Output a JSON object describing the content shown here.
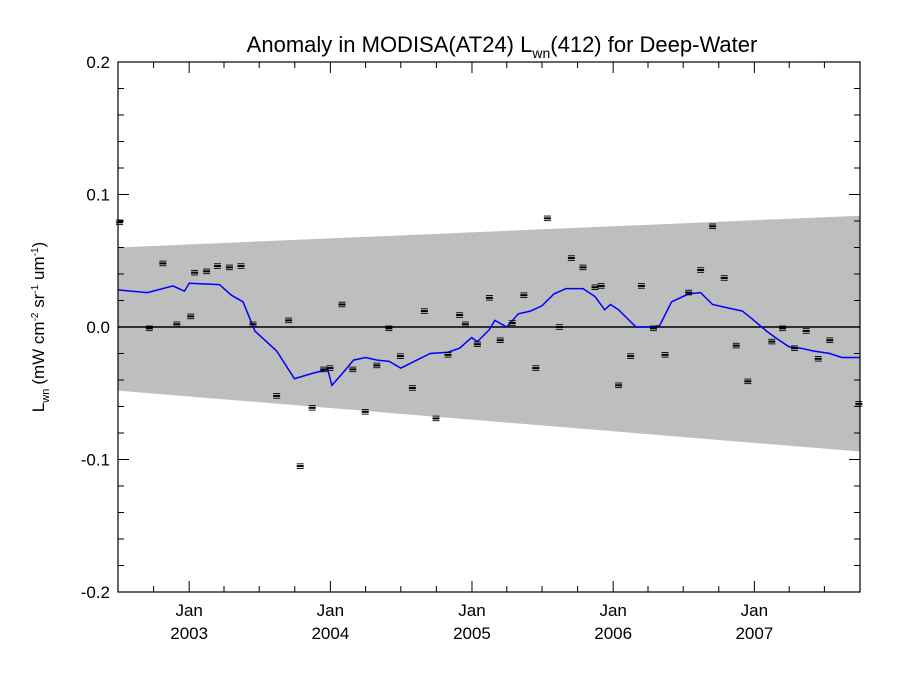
{
  "chart_data": {
    "type": "scatter",
    "title_main": "Anomaly in MODISA(AT24) L",
    "title_sub": "wn",
    "title_rest": "(412) for Deep-Water",
    "ylabel": {
      "base": "L",
      "base_sub": "wn",
      "units_pre": "(mW cm",
      "units_sup1": "-2",
      "units_mid1": " sr",
      "units_sup2": "-1",
      "units_mid2": " um",
      "units_sup3": "-1",
      "units_post": ")"
    },
    "x_range": [
      "2002-07-01",
      "2007-10-01"
    ],
    "ylim": [
      -0.2,
      0.2
    ],
    "y_ticks": [
      {
        "value": 0.2,
        "label": "0.2"
      },
      {
        "value": 0.1,
        "label": "0.1"
      },
      {
        "value": 0.0,
        "label": "0.0"
      },
      {
        "value": -0.1,
        "label": "-0.1"
      },
      {
        "value": -0.2,
        "label": "-0.2"
      }
    ],
    "x_ticks": [
      {
        "date": "2003-01-01",
        "month": "Jan",
        "year": "2003"
      },
      {
        "date": "2004-01-01",
        "month": "Jan",
        "year": "2004"
      },
      {
        "date": "2005-01-01",
        "month": "Jan",
        "year": "2005"
      },
      {
        "date": "2006-01-01",
        "month": "Jan",
        "year": "2006"
      },
      {
        "date": "2007-01-01",
        "month": "Jan",
        "year": "2007"
      }
    ],
    "band": {
      "start": {
        "date": "2002-07-01",
        "upper": 0.06,
        "lower": -0.048
      },
      "end": {
        "date": "2007-10-01",
        "upper": 0.084,
        "lower": -0.094
      }
    },
    "zero_line": 0.0,
    "series": [
      {
        "kind": "points",
        "color": "#000000",
        "points": [
          {
            "x": "2002-07-05",
            "y": 0.079
          },
          {
            "x": "2002-09-20",
            "y": -0.001
          },
          {
            "x": "2002-10-25",
            "y": 0.048
          },
          {
            "x": "2002-11-30",
            "y": 0.002
          },
          {
            "x": "2003-01-05",
            "y": 0.008
          },
          {
            "x": "2003-01-15",
            "y": 0.041
          },
          {
            "x": "2003-02-15",
            "y": 0.042
          },
          {
            "x": "2003-03-15",
            "y": 0.046
          },
          {
            "x": "2003-04-15",
            "y": 0.045
          },
          {
            "x": "2003-05-15",
            "y": 0.046
          },
          {
            "x": "2003-06-15",
            "y": 0.002
          },
          {
            "x": "2003-08-15",
            "y": -0.052
          },
          {
            "x": "2003-09-15",
            "y": 0.005
          },
          {
            "x": "2003-10-15",
            "y": -0.105
          },
          {
            "x": "2003-11-15",
            "y": -0.061
          },
          {
            "x": "2003-12-15",
            "y": -0.032
          },
          {
            "x": "2003-12-31",
            "y": -0.031
          },
          {
            "x": "2004-01-31",
            "y": 0.017
          },
          {
            "x": "2004-02-28",
            "y": -0.032
          },
          {
            "x": "2004-03-31",
            "y": -0.064
          },
          {
            "x": "2004-04-30",
            "y": -0.029
          },
          {
            "x": "2004-05-31",
            "y": -0.001
          },
          {
            "x": "2004-06-30",
            "y": -0.022
          },
          {
            "x": "2004-07-31",
            "y": -0.046
          },
          {
            "x": "2004-08-31",
            "y": 0.012
          },
          {
            "x": "2004-09-30",
            "y": -0.069
          },
          {
            "x": "2004-10-31",
            "y": -0.021
          },
          {
            "x": "2004-11-30",
            "y": 0.009
          },
          {
            "x": "2004-12-15",
            "y": 0.002
          },
          {
            "x": "2005-01-15",
            "y": -0.013
          },
          {
            "x": "2005-02-15",
            "y": 0.022
          },
          {
            "x": "2005-03-15",
            "y": -0.01
          },
          {
            "x": "2005-04-15",
            "y": 0.003
          },
          {
            "x": "2005-05-15",
            "y": 0.024
          },
          {
            "x": "2005-06-15",
            "y": -0.031
          },
          {
            "x": "2005-07-15",
            "y": 0.082
          },
          {
            "x": "2005-08-15",
            "y": 0.0
          },
          {
            "x": "2005-09-15",
            "y": 0.052
          },
          {
            "x": "2005-10-15",
            "y": 0.045
          },
          {
            "x": "2005-11-15",
            "y": 0.03
          },
          {
            "x": "2005-12-01",
            "y": 0.031
          },
          {
            "x": "2006-01-15",
            "y": -0.044
          },
          {
            "x": "2006-02-15",
            "y": -0.022
          },
          {
            "x": "2006-03-15",
            "y": 0.031
          },
          {
            "x": "2006-04-15",
            "y": -0.001
          },
          {
            "x": "2006-05-15",
            "y": -0.021
          },
          {
            "x": "2006-07-15",
            "y": 0.026
          },
          {
            "x": "2006-08-15",
            "y": 0.043
          },
          {
            "x": "2006-09-15",
            "y": 0.076
          },
          {
            "x": "2006-10-15",
            "y": 0.037
          },
          {
            "x": "2006-11-15",
            "y": -0.014
          },
          {
            "x": "2006-12-15",
            "y": -0.041
          },
          {
            "x": "2007-02-15",
            "y": -0.011
          },
          {
            "x": "2007-03-15",
            "y": -0.001
          },
          {
            "x": "2007-04-15",
            "y": -0.016
          },
          {
            "x": "2007-05-15",
            "y": -0.003
          },
          {
            "x": "2007-06-15",
            "y": -0.024
          },
          {
            "x": "2007-07-15",
            "y": -0.01
          },
          {
            "x": "2007-09-28",
            "y": -0.058
          }
        ]
      },
      {
        "kind": "line",
        "color": "#0000ff",
        "points": [
          {
            "x": "2002-07-01",
            "y": 0.028
          },
          {
            "x": "2002-09-15",
            "y": 0.026
          },
          {
            "x": "2002-11-20",
            "y": 0.031
          },
          {
            "x": "2002-12-20",
            "y": 0.027
          },
          {
            "x": "2003-01-01",
            "y": 0.033
          },
          {
            "x": "2003-03-20",
            "y": 0.032
          },
          {
            "x": "2003-04-20",
            "y": 0.024
          },
          {
            "x": "2003-05-20",
            "y": 0.019
          },
          {
            "x": "2003-06-20",
            "y": -0.003
          },
          {
            "x": "2003-08-15",
            "y": -0.018
          },
          {
            "x": "2003-09-30",
            "y": -0.039
          },
          {
            "x": "2003-11-15",
            "y": -0.035
          },
          {
            "x": "2003-12-25",
            "y": -0.032
          },
          {
            "x": "2004-01-05",
            "y": -0.044
          },
          {
            "x": "2004-02-01",
            "y": -0.035
          },
          {
            "x": "2004-03-01",
            "y": -0.025
          },
          {
            "x": "2004-04-01",
            "y": -0.023
          },
          {
            "x": "2004-05-01",
            "y": -0.025
          },
          {
            "x": "2004-06-01",
            "y": -0.026
          },
          {
            "x": "2004-07-01",
            "y": -0.031
          },
          {
            "x": "2004-09-15",
            "y": -0.02
          },
          {
            "x": "2004-10-31",
            "y": -0.019
          },
          {
            "x": "2004-11-30",
            "y": -0.016
          },
          {
            "x": "2004-12-31",
            "y": -0.008
          },
          {
            "x": "2005-01-15",
            "y": -0.011
          },
          {
            "x": "2005-02-15",
            "y": -0.002
          },
          {
            "x": "2005-03-01",
            "y": 0.005
          },
          {
            "x": "2005-04-01",
            "y": 0.0
          },
          {
            "x": "2005-05-01",
            "y": 0.01
          },
          {
            "x": "2005-06-01",
            "y": 0.012
          },
          {
            "x": "2005-07-01",
            "y": 0.016
          },
          {
            "x": "2005-08-01",
            "y": 0.025
          },
          {
            "x": "2005-09-01",
            "y": 0.029
          },
          {
            "x": "2005-10-15",
            "y": 0.029
          },
          {
            "x": "2005-11-15",
            "y": 0.023
          },
          {
            "x": "2005-12-10",
            "y": 0.013
          },
          {
            "x": "2005-12-25",
            "y": 0.017
          },
          {
            "x": "2006-01-15",
            "y": 0.013
          },
          {
            "x": "2006-03-01",
            "y": 0.0
          },
          {
            "x": "2006-04-01",
            "y": 0.0
          },
          {
            "x": "2006-05-01",
            "y": 0.001
          },
          {
            "x": "2006-06-01",
            "y": 0.019
          },
          {
            "x": "2006-07-15",
            "y": 0.025
          },
          {
            "x": "2006-08-15",
            "y": 0.026
          },
          {
            "x": "2006-09-15",
            "y": 0.017
          },
          {
            "x": "2006-10-15",
            "y": 0.015
          },
          {
            "x": "2006-12-01",
            "y": 0.012
          },
          {
            "x": "2006-12-31",
            "y": 0.005
          },
          {
            "x": "2007-02-01",
            "y": -0.003
          },
          {
            "x": "2007-03-01",
            "y": -0.009
          },
          {
            "x": "2007-04-01",
            "y": -0.015
          },
          {
            "x": "2007-05-01",
            "y": -0.016
          },
          {
            "x": "2007-06-01",
            "y": -0.018
          },
          {
            "x": "2007-07-15",
            "y": -0.02
          },
          {
            "x": "2007-08-15",
            "y": -0.023
          },
          {
            "x": "2007-10-01",
            "y": -0.023
          }
        ]
      }
    ],
    "colors": {
      "band": "#bebebe",
      "line": "#0000ff",
      "points": "#000000",
      "zero_line": "#000000",
      "axis": "#000000"
    }
  }
}
